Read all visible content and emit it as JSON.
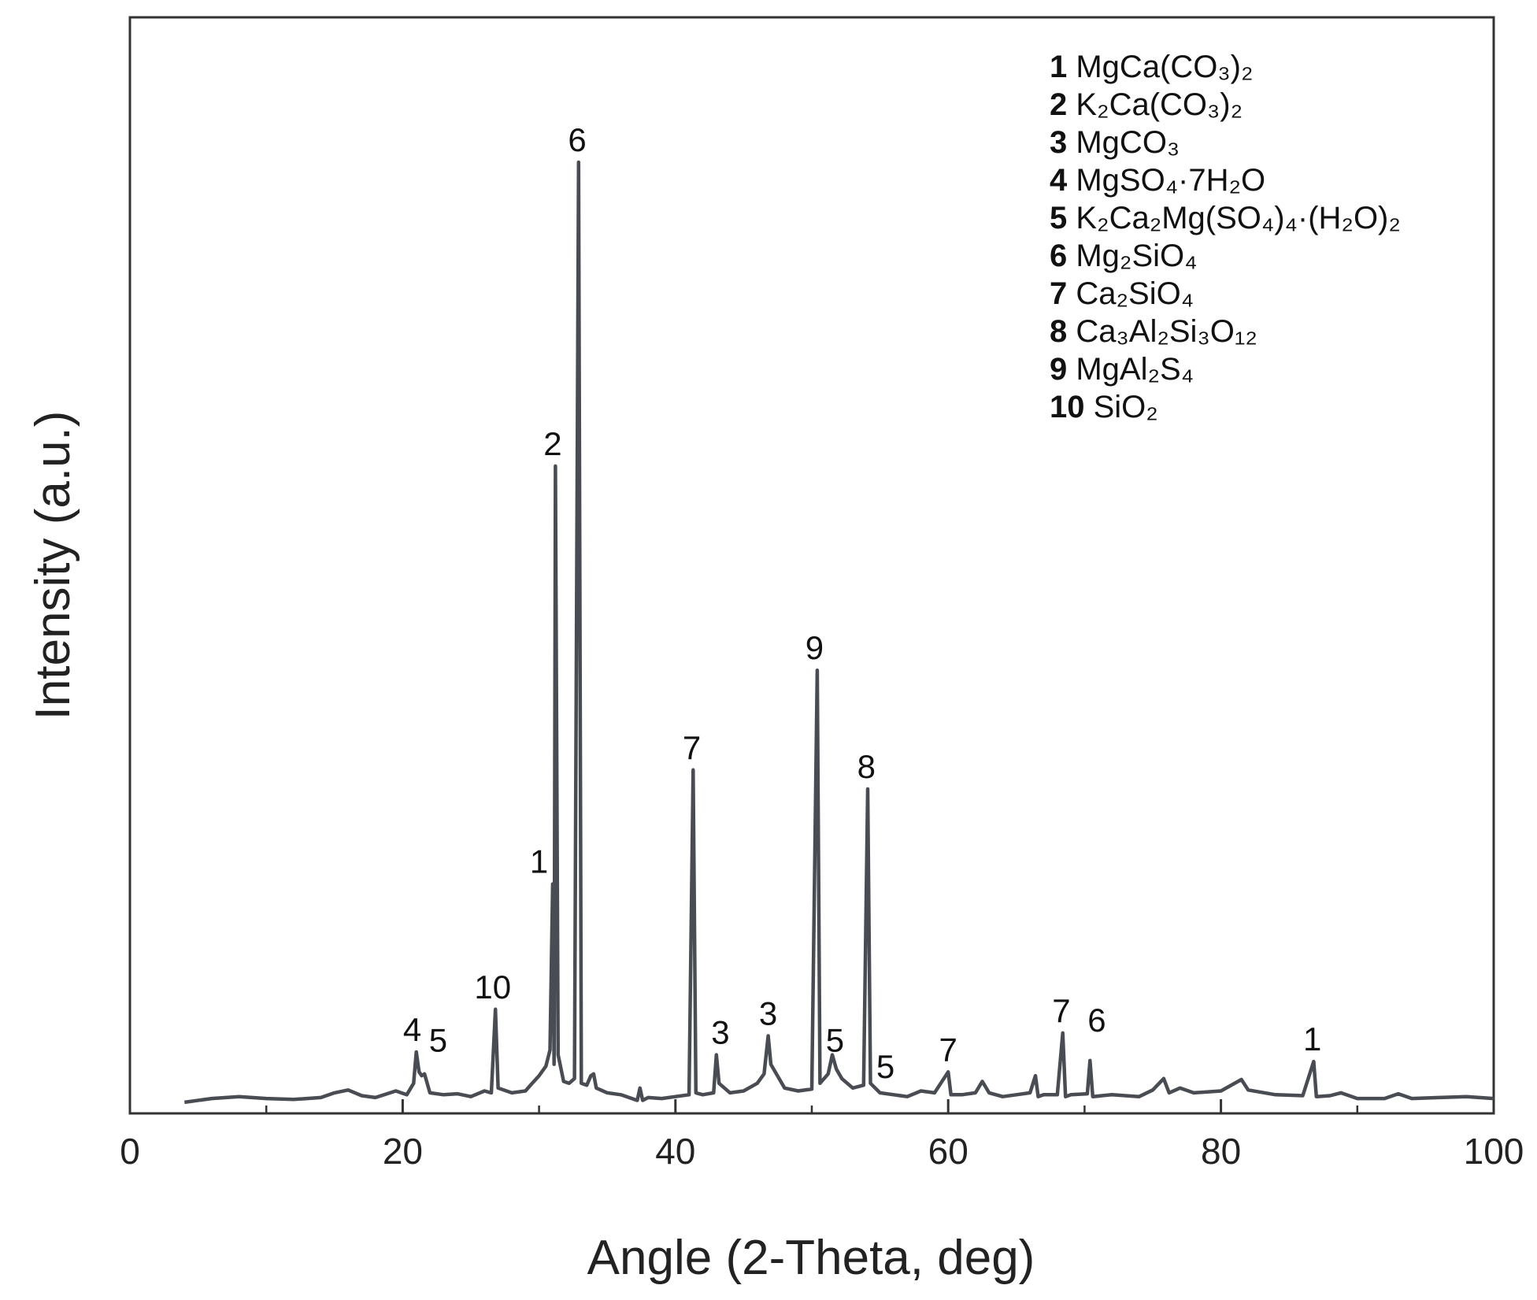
{
  "chart_data": {
    "type": "line",
    "xlabel": "Angle (2-Theta, deg)",
    "ylabel": "Intensity (a.u.)",
    "xlim": [
      0,
      100
    ],
    "ylim": [
      0,
      100
    ],
    "x_ticks": [
      0,
      20,
      40,
      60,
      80,
      100
    ],
    "x_tick_labels": [
      "0",
      "20",
      "40",
      "60",
      "80",
      "100"
    ],
    "grid": false,
    "legend_position": "top-right",
    "series": [
      {
        "name": "",
        "color": "#4a4c53",
        "points": [
          [
            4,
            1.0
          ],
          [
            6,
            1.4
          ],
          [
            8,
            1.6
          ],
          [
            10,
            1.4
          ],
          [
            12,
            1.3
          ],
          [
            14,
            1.5
          ],
          [
            15,
            2.0
          ],
          [
            16,
            2.3
          ],
          [
            17,
            1.7
          ],
          [
            18,
            1.5
          ],
          [
            19.5,
            2.2
          ],
          [
            20.3,
            1.8
          ],
          [
            20.8,
            3.0
          ],
          [
            21.0,
            6.3
          ],
          [
            21.2,
            4.2
          ],
          [
            21.4,
            3.8
          ],
          [
            21.6,
            4.0
          ],
          [
            22.0,
            2.0
          ],
          [
            23,
            1.8
          ],
          [
            24,
            1.9
          ],
          [
            25,
            1.6
          ],
          [
            26,
            2.2
          ],
          [
            26.5,
            2.0
          ],
          [
            26.8,
            10.8
          ],
          [
            27.0,
            2.5
          ],
          [
            28,
            2.0
          ],
          [
            29,
            2.2
          ],
          [
            29.5,
            3.0
          ],
          [
            30,
            3.8
          ],
          [
            30.5,
            4.8
          ],
          [
            30.8,
            6.5
          ],
          [
            31.0,
            24.0
          ],
          [
            31.1,
            5.0
          ],
          [
            31.2,
            68.0
          ],
          [
            31.4,
            6.0
          ],
          [
            31.8,
            3.2
          ],
          [
            32.2,
            3.0
          ],
          [
            32.6,
            3.5
          ],
          [
            32.9,
            100.0
          ],
          [
            33.1,
            3.0
          ],
          [
            33.5,
            2.8
          ],
          [
            33.8,
            3.8
          ],
          [
            34.0,
            4.0
          ],
          [
            34.2,
            2.5
          ],
          [
            35,
            2.0
          ],
          [
            36,
            1.8
          ],
          [
            37.2,
            1.2
          ],
          [
            37.4,
            2.5
          ],
          [
            37.6,
            1.2
          ],
          [
            38,
            1.5
          ],
          [
            39,
            1.4
          ],
          [
            40,
            1.6
          ],
          [
            41,
            1.8
          ],
          [
            41.3,
            36.0
          ],
          [
            41.5,
            2.0
          ],
          [
            42,
            1.8
          ],
          [
            42.8,
            2.0
          ],
          [
            43.0,
            6.0
          ],
          [
            43.2,
            3.0
          ],
          [
            44,
            2.0
          ],
          [
            45,
            2.2
          ],
          [
            46,
            3.0
          ],
          [
            46.5,
            4.0
          ],
          [
            46.8,
            8.0
          ],
          [
            47.0,
            5.0
          ],
          [
            48,
            2.5
          ],
          [
            49,
            2.2
          ],
          [
            50,
            2.4
          ],
          [
            50.4,
            46.5
          ],
          [
            50.6,
            3.0
          ],
          [
            51.2,
            4.0
          ],
          [
            51.5,
            6.0
          ],
          [
            51.8,
            4.5
          ],
          [
            52.2,
            3.5
          ],
          [
            53,
            2.5
          ],
          [
            53.8,
            2.8
          ],
          [
            54.1,
            34.0
          ],
          [
            54.3,
            3.0
          ],
          [
            55,
            2.0
          ],
          [
            56,
            1.8
          ],
          [
            57,
            1.6
          ],
          [
            58,
            2.2
          ],
          [
            59,
            2.0
          ],
          [
            60.0,
            4.2
          ],
          [
            60.2,
            1.8
          ],
          [
            61,
            1.8
          ],
          [
            62,
            2.0
          ],
          [
            62.5,
            3.2
          ],
          [
            63,
            2.0
          ],
          [
            64,
            1.6
          ],
          [
            65,
            1.8
          ],
          [
            66,
            2.0
          ],
          [
            66.4,
            3.8
          ],
          [
            66.6,
            1.6
          ],
          [
            67,
            1.8
          ],
          [
            68,
            1.8
          ],
          [
            68.4,
            8.3
          ],
          [
            68.6,
            1.6
          ],
          [
            69,
            1.8
          ],
          [
            70.2,
            1.9
          ],
          [
            70.4,
            5.4
          ],
          [
            70.6,
            1.6
          ],
          [
            72,
            1.8
          ],
          [
            74,
            1.6
          ],
          [
            75,
            2.3
          ],
          [
            75.8,
            3.5
          ],
          [
            76.2,
            2.0
          ],
          [
            77,
            2.5
          ],
          [
            78,
            2.0
          ],
          [
            80,
            2.2
          ],
          [
            81.5,
            3.4
          ],
          [
            82,
            2.3
          ],
          [
            84,
            1.8
          ],
          [
            86,
            1.7
          ],
          [
            86.8,
            5.3
          ],
          [
            87.0,
            1.6
          ],
          [
            88,
            1.7
          ],
          [
            88.8,
            2.0
          ],
          [
            90,
            1.4
          ],
          [
            92,
            1.4
          ],
          [
            93,
            1.9
          ],
          [
            94,
            1.4
          ],
          [
            96,
            1.5
          ],
          [
            98,
            1.6
          ],
          [
            100,
            1.4
          ]
        ]
      }
    ],
    "annotations": [
      {
        "text": "4",
        "x": 20.7,
        "y": 6.3
      },
      {
        "text": "5",
        "x": 22.6,
        "y": 5.2
      },
      {
        "text": "10",
        "x": 26.6,
        "y": 10.8
      },
      {
        "text": "1",
        "x": 30.0,
        "y": 24.0
      },
      {
        "text": "2",
        "x": 31.0,
        "y": 68.0
      },
      {
        "text": "6",
        "x": 32.8,
        "y": 100.0
      },
      {
        "text": "7",
        "x": 41.2,
        "y": 36.0
      },
      {
        "text": "3",
        "x": 43.3,
        "y": 6.0
      },
      {
        "text": "3",
        "x": 46.8,
        "y": 8.0
      },
      {
        "text": "9",
        "x": 50.2,
        "y": 46.5
      },
      {
        "text": "5",
        "x": 51.7,
        "y": 5.2
      },
      {
        "text": "8",
        "x": 54.0,
        "y": 34.0
      },
      {
        "text": "5",
        "x": 55.4,
        "y": 2.4
      },
      {
        "text": "7",
        "x": 60.0,
        "y": 4.2
      },
      {
        "text": "7",
        "x": 68.3,
        "y": 8.3
      },
      {
        "text": "6",
        "x": 70.9,
        "y": 7.3
      },
      {
        "text": "1",
        "x": 86.7,
        "y": 5.3
      }
    ],
    "legend": [
      {
        "num": "1",
        "formula": "MgCa(CO₃)₂"
      },
      {
        "num": "2",
        "formula": "K₂Ca(CO₃)₂"
      },
      {
        "num": "3",
        "formula": "MgCO₃"
      },
      {
        "num": "4",
        "formula": "MgSO₄·7H₂O"
      },
      {
        "num": "5",
        "formula": "K₂Ca₂Mg(SO₄)₄·(H₂O)₂"
      },
      {
        "num": "6",
        "formula": "Mg₂SiO₄"
      },
      {
        "num": "7",
        "formula": "Ca₂SiO₄"
      },
      {
        "num": "8",
        "formula": "Ca₃Al₂Si₃O₁₂"
      },
      {
        "num": "9",
        "formula": "MgAl₂S₄"
      },
      {
        "num": "10",
        "formula": "SiO₂"
      }
    ]
  }
}
